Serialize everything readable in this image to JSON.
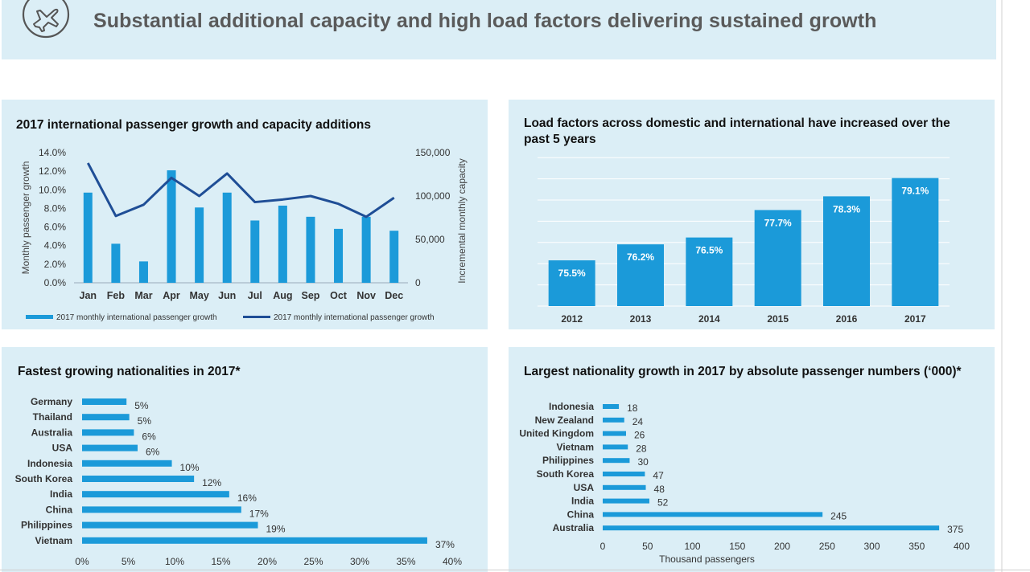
{
  "header": {
    "title": "Substantial additional capacity and high load factors delivering sustained growth",
    "icon": "airplane-icon",
    "bg_color": "#dbeef6"
  },
  "colors": {
    "bar": "#1b9ad9",
    "line": "#1f4e96",
    "panel_bg": "#dbeef6",
    "grid": "#ffffff"
  },
  "chart_data": [
    {
      "type": "bar",
      "title": "2017 international passenger growth and capacity additions",
      "categories": [
        "Jan",
        "Feb",
        "Mar",
        "Apr",
        "May",
        "Jun",
        "Jul",
        "Aug",
        "Sep",
        "Oct",
        "Nov",
        "Dec"
      ],
      "ylabel": "Monthly passenger growth",
      "y2label": "Incremental monthly capacity",
      "ylim": [
        0,
        14
      ],
      "y2lim": [
        0,
        150000
      ],
      "yticks": [
        "0.0%",
        "2.0%",
        "4.0%",
        "6.0%",
        "8.0%",
        "10.0%",
        "12.0%",
        "14.0%"
      ],
      "y2ticks": [
        "0",
        "50,000",
        "100,000",
        "150,000"
      ],
      "series": [
        {
          "name": "2017 monthly international passenger growth",
          "kind": "bar",
          "axis": "left",
          "values": [
            9.7,
            4.2,
            2.3,
            12.1,
            8.1,
            9.7,
            6.7,
            8.3,
            7.1,
            5.8,
            7.1,
            5.6
          ]
        },
        {
          "name": "2017 monthly international passenger growth",
          "kind": "line",
          "axis": "right",
          "values": [
            138000,
            77000,
            90000,
            121000,
            100000,
            126000,
            93000,
            96000,
            100000,
            91000,
            76000,
            98000
          ]
        }
      ],
      "legend": "bottom"
    },
    {
      "type": "bar",
      "title": "Load factors across domestic and international have increased over the past 5 years",
      "categories": [
        "2012",
        "2013",
        "2014",
        "2015",
        "2016",
        "2017"
      ],
      "values": [
        75.5,
        76.2,
        76.5,
        77.7,
        78.3,
        79.1
      ],
      "labels": [
        "75.5%",
        "76.2%",
        "76.5%",
        "77.7%",
        "78.3%",
        "79.1%"
      ],
      "ylim": [
        73.5,
        80
      ],
      "grid": true
    },
    {
      "type": "bar",
      "orientation": "horizontal",
      "title": "Fastest growing nationalities in 2017*",
      "categories": [
        "Germany",
        "Thailand",
        "Australia",
        "USA",
        "Indonesia",
        "South Korea",
        "India",
        "China",
        "Philippines",
        "Vietnam"
      ],
      "values": [
        5,
        5,
        6,
        6,
        10,
        12,
        16,
        17,
        19,
        37
      ],
      "value_labels": [
        "5%",
        "5%",
        "6%",
        "6%",
        "10%",
        "12%",
        "16%",
        "17%",
        "19%",
        "37%"
      ],
      "bar_values": [
        4.8,
        5.1,
        5.6,
        6.0,
        9.7,
        12.1,
        15.9,
        17.2,
        19.0,
        37.3
      ],
      "xlim": [
        0,
        40
      ],
      "xticks": [
        "0%",
        "5%",
        "10%",
        "15%",
        "20%",
        "25%",
        "30%",
        "35%",
        "40%"
      ]
    },
    {
      "type": "bar",
      "orientation": "horizontal",
      "title": "Largest nationality growth in 2017 by absolute passenger numbers (‘000)*",
      "categories": [
        "Indonesia",
        "New Zealand",
        "United Kingdom",
        "Vietnam",
        "Philippines",
        "South Korea",
        "USA",
        "India",
        "China",
        "Australia"
      ],
      "values": [
        18,
        24,
        26,
        28,
        30,
        47,
        48,
        52,
        245,
        375
      ],
      "value_labels": [
        "18",
        "24",
        "26",
        "28",
        "30",
        "47",
        "48",
        "52",
        "245",
        "375"
      ],
      "xlim": [
        0,
        400
      ],
      "xticks": [
        "0",
        "50",
        "100",
        "150",
        "200",
        "250",
        "300",
        "350",
        "400"
      ],
      "xlabel": "Thousand  passengers"
    }
  ]
}
